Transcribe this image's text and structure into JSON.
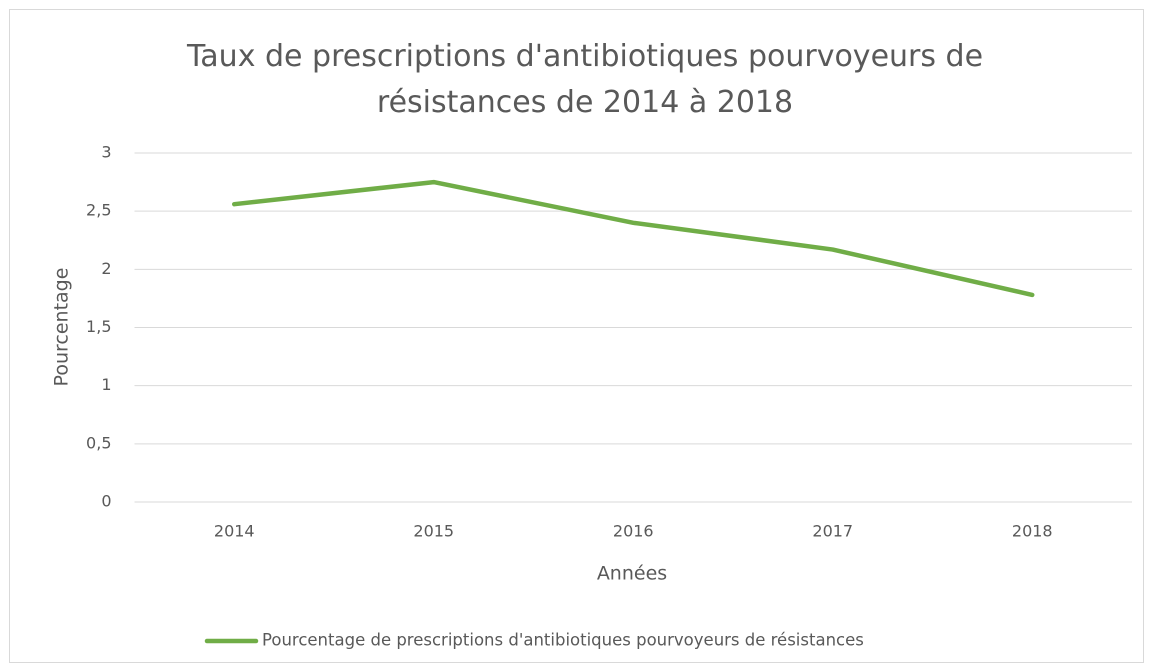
{
  "chart_data": {
    "type": "line",
    "title": "Taux de prescriptions d'antibiotiques pourvoyeurs de résistances de 2014 à 2018",
    "x_label": "Années",
    "y_label": "Pourcentage",
    "categories": [
      "2014",
      "2015",
      "2016",
      "2017",
      "2018"
    ],
    "series": [
      {
        "name": "Pourcentage de prescriptions d'antibiotiques pourvoyeurs de résistances",
        "color": "#70ad47",
        "values": [
          2.56,
          2.75,
          2.4,
          2.17,
          1.78
        ]
      }
    ],
    "ylim": [
      0,
      3
    ],
    "yticks": [
      0,
      {
        "value": 0.5,
        "label": "0,5"
      },
      1,
      {
        "value": 1.5,
        "label": "1,5"
      },
      2,
      {
        "value": 2.5,
        "label": "2,5"
      },
      3
    ],
    "grid": true,
    "legend": "bottom"
  }
}
